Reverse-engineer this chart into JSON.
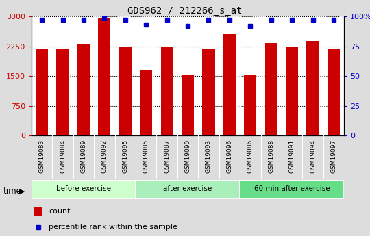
{
  "title": "GDS962 / 212266_s_at",
  "categories": [
    "GSM19083",
    "GSM19084",
    "GSM19089",
    "GSM19092",
    "GSM19095",
    "GSM19085",
    "GSM19087",
    "GSM19090",
    "GSM19093",
    "GSM19096",
    "GSM19086",
    "GSM19088",
    "GSM19091",
    "GSM19094",
    "GSM19097"
  ],
  "bar_values": [
    2180,
    2190,
    2310,
    2960,
    2250,
    1640,
    2240,
    1540,
    2200,
    2560,
    1540,
    2330,
    2240,
    2380,
    2190
  ],
  "percentile_values": [
    97,
    97,
    97,
    99,
    97,
    93,
    97,
    92,
    97,
    97,
    92,
    97,
    97,
    97,
    97
  ],
  "bar_color": "#cc0000",
  "dot_color": "#0000cc",
  "ylim_left": [
    0,
    3000
  ],
  "ylim_right": [
    0,
    100
  ],
  "yticks_left": [
    0,
    750,
    1500,
    2250,
    3000
  ],
  "ytick_labels_left": [
    "0",
    "750",
    "1500",
    "2250",
    "3000"
  ],
  "yticks_right": [
    0,
    25,
    50,
    75,
    100
  ],
  "ytick_labels_right": [
    "0",
    "25",
    "50",
    "75",
    "100%"
  ],
  "groups": [
    {
      "label": "before exercise",
      "start": 0,
      "end": 5,
      "color": "#ccffcc"
    },
    {
      "label": "after exercise",
      "start": 5,
      "end": 10,
      "color": "#aaeebb"
    },
    {
      "label": "60 min after exercise",
      "start": 10,
      "end": 15,
      "color": "#66dd88"
    }
  ],
  "legend_count_label": "count",
  "legend_pct_label": "percentile rank within the sample",
  "time_label": "time",
  "fig_bg": "#dddddd",
  "plot_bg": "#ffffff",
  "xlabel_color": "#cc0000",
  "ylabel_right_color": "#0000cc",
  "xlabel_bg": "#cccccc"
}
